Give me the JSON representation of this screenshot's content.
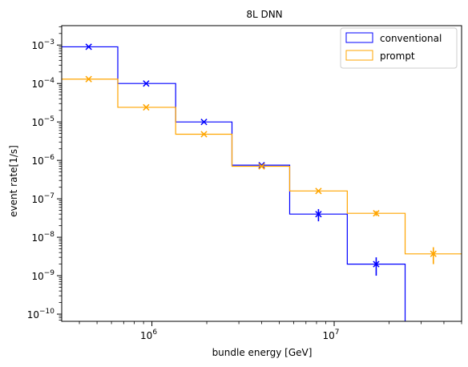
{
  "chart_data": {
    "type": "line",
    "title": "8L DNN",
    "xlabel": "bundle energy [GeV]",
    "ylabel": "event rate[1/s]",
    "x_scale": "log",
    "y_scale": "log",
    "xlim": [
      320000,
      50000000
    ],
    "ylim": [
      6.5e-11,
      0.0032
    ],
    "x_ticks": [
      {
        "value": 1000000,
        "base": "10",
        "exp": "6"
      },
      {
        "value": 10000000,
        "base": "10",
        "exp": "7"
      }
    ],
    "y_ticks": [
      {
        "value": 1e-10,
        "base": "10",
        "exp": "−10"
      },
      {
        "value": 1e-09,
        "base": "10",
        "exp": "−9"
      },
      {
        "value": 1e-08,
        "base": "10",
        "exp": "−8"
      },
      {
        "value": 1e-07,
        "base": "10",
        "exp": "−7"
      },
      {
        "value": 1e-06,
        "base": "10",
        "exp": "−6"
      },
      {
        "value": 1e-05,
        "base": "10",
        "exp": "−5"
      },
      {
        "value": 0.0001,
        "base": "10",
        "exp": "−4"
      },
      {
        "value": 0.001,
        "base": "10",
        "exp": "−3"
      }
    ],
    "legend_position": "top-right",
    "bin_edges": [
      320000,
      650000,
      1350000,
      2750000,
      5700000,
      11800000,
      24500000,
      50000000
    ],
    "series": [
      {
        "name": "conventional",
        "color": "#0000ff",
        "bin_values": [
          0.0009,
          0.0001,
          1e-05,
          7.5e-07,
          4e-08,
          2e-09,
          1e-12
        ],
        "points": [
          {
            "x": 450000,
            "y": 0.0009,
            "ylo": 0.0009,
            "yhi": 0.0009
          },
          {
            "x": 930000,
            "y": 0.0001,
            "ylo": 0.0001,
            "yhi": 0.0001
          },
          {
            "x": 1930000,
            "y": 1e-05,
            "ylo": 1e-05,
            "yhi": 1e-05
          },
          {
            "x": 4000000,
            "y": 7.5e-07,
            "ylo": 7.5e-07,
            "yhi": 7.5e-07
          },
          {
            "x": 8200000,
            "y": 4e-08,
            "ylo": 2.6e-08,
            "yhi": 5.4e-08
          },
          {
            "x": 17000000,
            "y": 2e-09,
            "ylo": 1e-09,
            "yhi": 3e-09
          }
        ]
      },
      {
        "name": "prompt",
        "color": "#ffa500",
        "bin_values": [
          0.00013,
          2.4e-05,
          4.8e-06,
          7e-07,
          1.6e-07,
          4.2e-08,
          3.7e-09
        ],
        "points": [
          {
            "x": 450000,
            "y": 0.00013,
            "ylo": 0.00013,
            "yhi": 0.00013
          },
          {
            "x": 930000,
            "y": 2.4e-05,
            "ylo": 2.4e-05,
            "yhi": 2.4e-05
          },
          {
            "x": 1930000,
            "y": 4.8e-06,
            "ylo": 4.8e-06,
            "yhi": 4.8e-06
          },
          {
            "x": 4000000,
            "y": 7e-07,
            "ylo": 7e-07,
            "yhi": 7e-07
          },
          {
            "x": 8200000,
            "y": 1.6e-07,
            "ylo": 1.6e-07,
            "yhi": 1.6e-07
          },
          {
            "x": 17000000,
            "y": 4.2e-08,
            "ylo": 3.6e-08,
            "yhi": 4.8e-08
          },
          {
            "x": 35000000,
            "y": 3.7e-09,
            "ylo": 2e-09,
            "yhi": 5.5e-09
          }
        ]
      }
    ]
  }
}
